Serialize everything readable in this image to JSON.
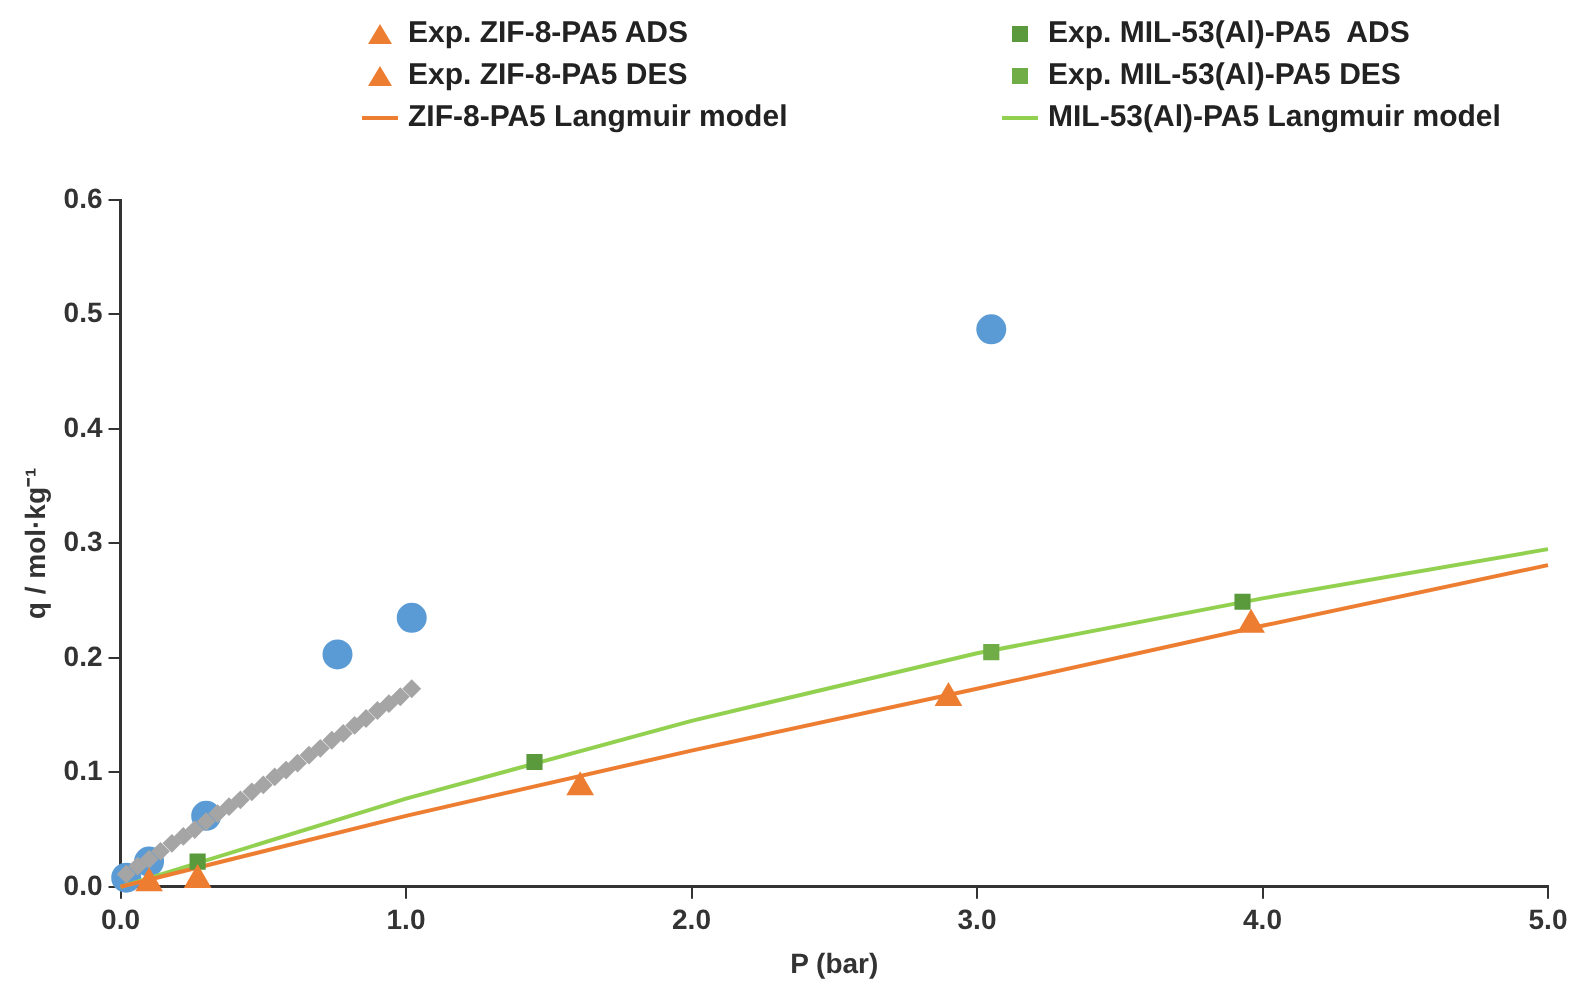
{
  "chart_data": {
    "type": "scatter",
    "xlabel": "P (bar)",
    "ylabel": "q / mol·kg⁻¹",
    "legend": "top",
    "xlim": [
      0,
      5
    ],
    "ylim": [
      0,
      0.6
    ],
    "xticks": [
      {
        "value": 0,
        "label": "0.0"
      },
      {
        "value": 1,
        "label": "1.0"
      },
      {
        "value": 2,
        "label": "2.0"
      },
      {
        "value": 3,
        "label": "3.0"
      },
      {
        "value": 4,
        "label": "4.0"
      },
      {
        "value": 5,
        "label": "5.0"
      }
    ],
    "yticks": [
      {
        "value": 0,
        "label": "0.0"
      },
      {
        "value": 0.1,
        "label": "0.1"
      },
      {
        "value": 0.2,
        "label": "0.2"
      },
      {
        "value": 0.3,
        "label": "0.3"
      },
      {
        "value": 0.4,
        "label": "0.4"
      },
      {
        "value": 0.5,
        "label": "0.5"
      },
      {
        "value": 0.6,
        "label": "0.6"
      }
    ],
    "series": [
      {
        "name": "Exp. ZIF-8-PA5 ADS",
        "type": "scatter",
        "marker": "triangle",
        "color": "#ed7d31",
        "x": [
          0.1,
          0.27,
          1.61,
          3.96
        ],
        "values": [
          0.003,
          0.006,
          0.087,
          0.229
        ]
      },
      {
        "name": "Exp. MIL-53(Al)-PA5  ADS",
        "type": "scatter",
        "marker": "square",
        "color": "#5a9a3c",
        "x": [
          0.27,
          1.45,
          3.93
        ],
        "values": [
          0.022,
          0.109,
          0.249
        ]
      },
      {
        "name": "Exp. ZIF-8-PA5 DES",
        "type": "scatter",
        "marker": "triangle",
        "color": "#ed7d31",
        "x": [
          2.9
        ],
        "values": [
          0.165
        ]
      },
      {
        "name": "Exp. MIL-53(Al)-PA5 DES",
        "type": "scatter",
        "marker": "square",
        "color": "#70ad47",
        "x": [
          3.05
        ],
        "values": [
          0.205
        ]
      },
      {
        "name": "ZIF-8-PA5 Langmuir model",
        "type": "line",
        "marker": "none",
        "color": "#ed7d31",
        "x": [
          0,
          1,
          2,
          3,
          4,
          5
        ],
        "values": [
          0,
          0.062,
          0.119,
          0.173,
          0.228,
          0.281
        ]
      },
      {
        "name": "MIL-53(Al)-PA5 Langmuir model",
        "type": "line",
        "marker": "none",
        "color": "#92d050",
        "x": [
          0,
          1,
          2,
          3,
          4,
          5
        ],
        "values": [
          0,
          0.077,
          0.145,
          0.204,
          0.252,
          0.295
        ]
      },
      {
        "type": "scatter",
        "marker": "diamond",
        "color": "#a5a5a5",
        "x": [
          0.02,
          0.06,
          0.1,
          0.14,
          0.18,
          0.22,
          0.26,
          0.3,
          0.34,
          0.38,
          0.42,
          0.46,
          0.5,
          0.54,
          0.58,
          0.62,
          0.66,
          0.7,
          0.74,
          0.78,
          0.82,
          0.86,
          0.9,
          0.94,
          0.98,
          1.02
        ],
        "values": [
          0.011,
          0.018,
          0.024,
          0.031,
          0.038,
          0.044,
          0.05,
          0.057,
          0.064,
          0.07,
          0.076,
          0.083,
          0.089,
          0.096,
          0.102,
          0.108,
          0.115,
          0.121,
          0.128,
          0.134,
          0.141,
          0.147,
          0.154,
          0.16,
          0.166,
          0.173
        ]
      },
      {
        "type": "scatter",
        "marker": "circle",
        "color": "#5b9bd5",
        "x": [
          0.02,
          0.1,
          0.3,
          0.76,
          1.02,
          3.05
        ],
        "values": [
          0.008,
          0.022,
          0.062,
          0.203,
          0.235,
          0.487
        ]
      }
    ]
  }
}
